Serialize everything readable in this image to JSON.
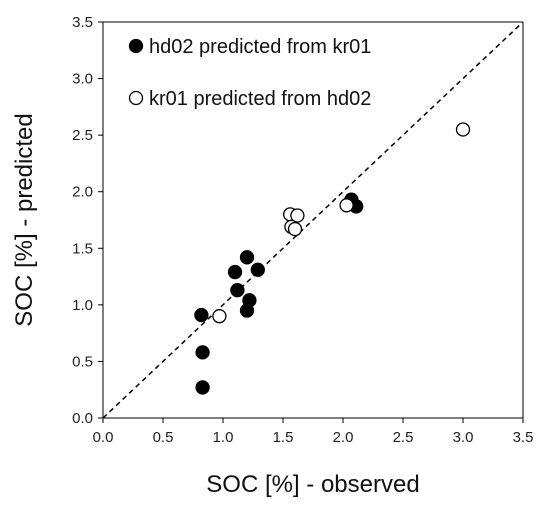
{
  "chart_data": {
    "type": "scatter",
    "title": "",
    "xlabel": "SOC [%] - observed",
    "ylabel": "SOC [%] - predicted",
    "xlim": [
      0,
      3.5
    ],
    "ylim": [
      0,
      3.5
    ],
    "x_ticks": [
      "0.0",
      "0.5",
      "1.0",
      "1.5",
      "2.0",
      "2.5",
      "3.0",
      "3.5"
    ],
    "y_ticks": [
      "0.0",
      "0.5",
      "1.0",
      "1.5",
      "2.0",
      "2.5",
      "3.0",
      "3.5"
    ],
    "grid": false,
    "legend_position": "top-left",
    "reference_line": "1:1 dashed",
    "series": [
      {
        "name": "hd02 predicted from kr01",
        "marker": "filled-circle",
        "color": "#000000",
        "points": [
          {
            "x": 0.82,
            "y": 0.91
          },
          {
            "x": 0.83,
            "y": 0.58
          },
          {
            "x": 0.83,
            "y": 0.27
          },
          {
            "x": 1.1,
            "y": 1.29
          },
          {
            "x": 1.12,
            "y": 1.13
          },
          {
            "x": 1.2,
            "y": 1.42
          },
          {
            "x": 1.2,
            "y": 0.95
          },
          {
            "x": 1.22,
            "y": 1.04
          },
          {
            "x": 1.29,
            "y": 1.31
          },
          {
            "x": 2.07,
            "y": 1.93
          },
          {
            "x": 2.11,
            "y": 1.87
          }
        ]
      },
      {
        "name": "kr01 predicted from hd02",
        "marker": "open-circle",
        "color": "#000000",
        "points": [
          {
            "x": 0.97,
            "y": 0.9
          },
          {
            "x": 1.56,
            "y": 1.8
          },
          {
            "x": 1.57,
            "y": 1.69
          },
          {
            "x": 1.6,
            "y": 1.67
          },
          {
            "x": 1.62,
            "y": 1.79
          },
          {
            "x": 2.03,
            "y": 1.88
          },
          {
            "x": 3.0,
            "y": 2.55
          }
        ]
      }
    ]
  }
}
